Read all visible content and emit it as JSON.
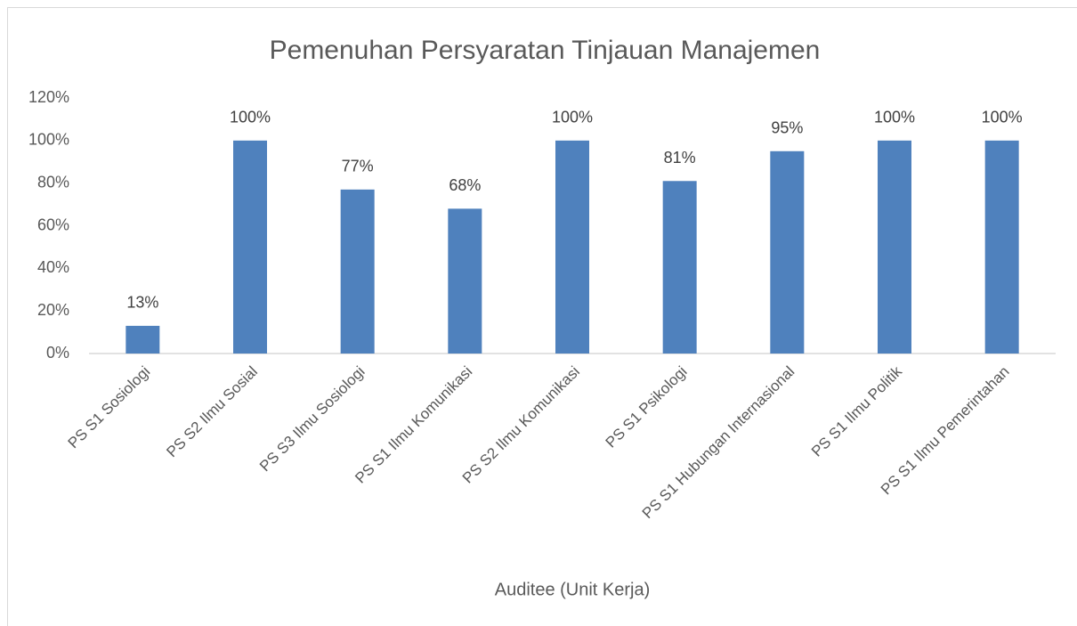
{
  "chart_data": {
    "type": "bar",
    "title": "Pemenuhan Persyaratan Tinjauan Manajemen",
    "x_label": "Auditee (Unit Kerja)",
    "categories": [
      "PS S1 Sosiologi",
      "PS S2 Ilmu Sosial",
      "PS S3 Ilmu Sosiologi",
      "PS S1 Ilmu Komunikasi",
      "PS S2 Ilmu Komunikasi",
      "PS S1 Psikologi",
      "PS S1 Hubungan Internasional",
      "PS S1 Ilmu Politik",
      "PS S1 Ilmu Pemerintahan"
    ],
    "values": [
      13,
      100,
      77,
      68,
      100,
      81,
      95,
      100,
      100
    ],
    "value_labels": [
      "13%",
      "100%",
      "77%",
      "68%",
      "100%",
      "81%",
      "95%",
      "100%",
      "100%"
    ],
    "color": "#4f81bd",
    "ylim": [
      0,
      120
    ],
    "yticks": [
      {
        "value": 0,
        "label": "0%"
      },
      {
        "value": 20,
        "label": "20%"
      },
      {
        "value": 40,
        "label": "40%"
      },
      {
        "value": 60,
        "label": "60%"
      },
      {
        "value": 80,
        "label": "80%"
      },
      {
        "value": 100,
        "label": "100%"
      },
      {
        "value": 120,
        "label": "120%"
      }
    ],
    "grid": false
  }
}
